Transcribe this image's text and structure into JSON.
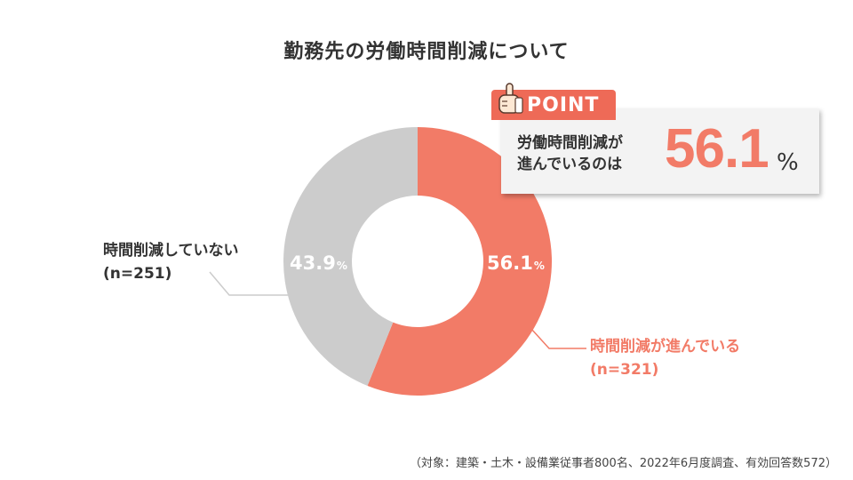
{
  "title": "勤務先の労働時間削減について",
  "point": {
    "tab": "POINT",
    "desc_line1": "労働時間削減が",
    "desc_line2": "進んでいるのは",
    "big_value": "56.1",
    "big_unit": "%"
  },
  "note": "（対象：建築・土木・設備業従事者800名、2022年6月度調査、有効回答数572）",
  "colors": {
    "accent": "#f27b67",
    "grey": "#cccccc",
    "text": "#333333"
  },
  "chart_data": {
    "type": "pie",
    "subtype": "donut",
    "slices": [
      {
        "name": "時間削減が進んでいる",
        "count_label": "(n=321)",
        "value": 56.1,
        "label": "56.1",
        "unit": "%",
        "color": "#f27b67"
      },
      {
        "name": "時間削減していない",
        "count_label": "(n=251)",
        "value": 43.9,
        "label": "43.9",
        "unit": "%",
        "color": "#cccccc"
      }
    ]
  }
}
